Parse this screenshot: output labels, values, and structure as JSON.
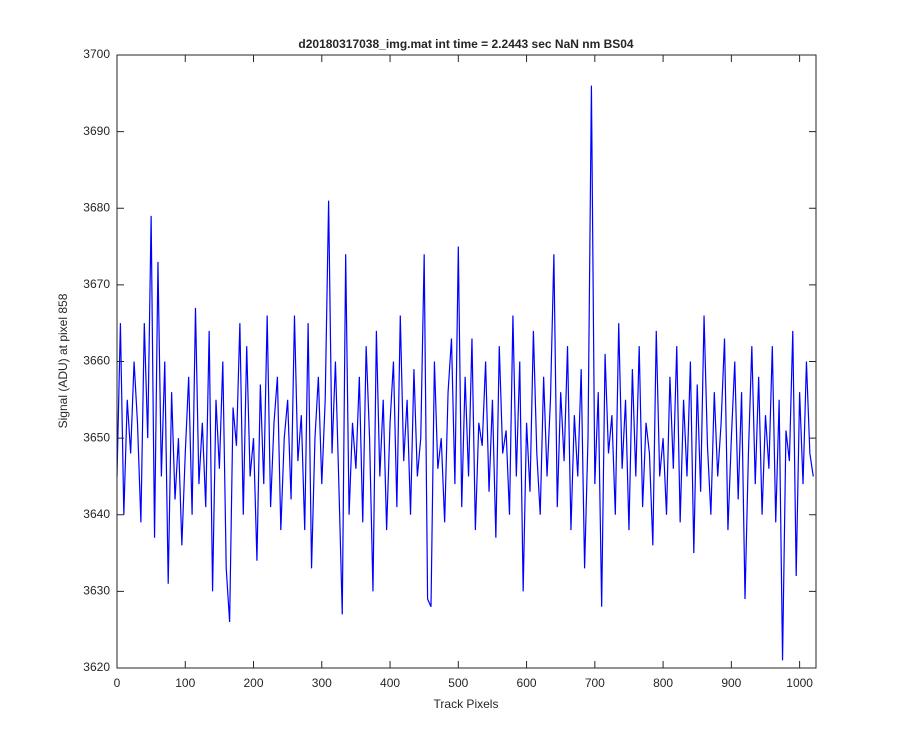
{
  "chart_data": {
    "type": "line",
    "title": "d20180317038_img.mat int time = 2.2443 sec  NaN nm BS04",
    "xlabel": "Track Pixels",
    "ylabel": "Signal (ADU) at pixel 858",
    "color": "#0000ff",
    "xlim": [
      0,
      1024
    ],
    "ylim": [
      3620,
      3700
    ],
    "xticks": [
      0,
      100,
      200,
      300,
      400,
      500,
      600,
      700,
      800,
      900,
      1000
    ],
    "yticks": [
      3620,
      3630,
      3640,
      3650,
      3660,
      3670,
      3680,
      3690,
      3700
    ],
    "x": [
      0,
      5,
      10,
      15,
      20,
      25,
      30,
      35,
      40,
      45,
      50,
      55,
      60,
      65,
      70,
      75,
      80,
      85,
      90,
      95,
      100,
      105,
      110,
      115,
      120,
      125,
      130,
      135,
      140,
      145,
      150,
      155,
      160,
      165,
      170,
      175,
      180,
      185,
      190,
      195,
      200,
      205,
      210,
      215,
      220,
      225,
      230,
      235,
      240,
      245,
      250,
      255,
      260,
      265,
      270,
      275,
      280,
      285,
      290,
      295,
      300,
      305,
      310,
      315,
      320,
      325,
      330,
      335,
      340,
      345,
      350,
      355,
      360,
      365,
      370,
      375,
      380,
      385,
      390,
      395,
      400,
      405,
      410,
      415,
      420,
      425,
      430,
      435,
      440,
      445,
      450,
      455,
      460,
      465,
      470,
      475,
      480,
      485,
      490,
      495,
      500,
      505,
      510,
      515,
      520,
      525,
      530,
      535,
      540,
      545,
      550,
      555,
      560,
      565,
      570,
      575,
      580,
      585,
      590,
      595,
      600,
      605,
      610,
      615,
      620,
      625,
      630,
      635,
      640,
      645,
      650,
      655,
      660,
      665,
      670,
      675,
      680,
      685,
      690,
      695,
      700,
      705,
      710,
      715,
      720,
      725,
      730,
      735,
      740,
      745,
      750,
      755,
      760,
      765,
      770,
      775,
      780,
      785,
      790,
      795,
      800,
      805,
      810,
      815,
      820,
      825,
      830,
      835,
      840,
      845,
      850,
      855,
      860,
      865,
      870,
      875,
      880,
      885,
      890,
      895,
      900,
      905,
      910,
      915,
      920,
      925,
      930,
      935,
      940,
      945,
      950,
      955,
      960,
      965,
      970,
      975,
      980,
      985,
      990,
      995,
      1000,
      1005,
      1010,
      1015,
      1020
    ],
    "values": [
      3645,
      3665,
      3640,
      3655,
      3648,
      3660,
      3652,
      3639,
      3665,
      3650,
      3679,
      3637,
      3673,
      3645,
      3660,
      3631,
      3656,
      3642,
      3650,
      3636,
      3648,
      3658,
      3640,
      3667,
      3644,
      3652,
      3641,
      3664,
      3630,
      3655,
      3646,
      3660,
      3633,
      3626,
      3654,
      3649,
      3665,
      3640,
      3662,
      3645,
      3650,
      3634,
      3657,
      3644,
      3666,
      3641,
      3652,
      3658,
      3638,
      3650,
      3655,
      3642,
      3666,
      3647,
      3653,
      3638,
      3665,
      3633,
      3650,
      3658,
      3644,
      3655,
      3681,
      3648,
      3660,
      3644,
      3627,
      3674,
      3640,
      3652,
      3646,
      3658,
      3639,
      3662,
      3650,
      3630,
      3664,
      3645,
      3655,
      3638,
      3652,
      3660,
      3641,
      3666,
      3647,
      3655,
      3640,
      3659,
      3645,
      3650,
      3674,
      3629,
      3628,
      3660,
      3646,
      3650,
      3639,
      3656,
      3663,
      3644,
      3675,
      3641,
      3658,
      3645,
      3663,
      3638,
      3652,
      3649,
      3660,
      3643,
      3655,
      3637,
      3662,
      3648,
      3651,
      3640,
      3666,
      3645,
      3660,
      3630,
      3652,
      3643,
      3664,
      3648,
      3640,
      3658,
      3645,
      3655,
      3674,
      3641,
      3656,
      3647,
      3662,
      3638,
      3653,
      3645,
      3659,
      3633,
      3650,
      3696,
      3644,
      3656,
      3628,
      3661,
      3648,
      3653,
      3640,
      3665,
      3646,
      3655,
      3638,
      3659,
      3645,
      3662,
      3641,
      3652,
      3648,
      3636,
      3664,
      3645,
      3650,
      3640,
      3658,
      3646,
      3662,
      3639,
      3655,
      3645,
      3660,
      3635,
      3657,
      3643,
      3666,
      3649,
      3640,
      3656,
      3645,
      3652,
      3663,
      3638,
      3650,
      3660,
      3642,
      3656,
      3629,
      3648,
      3662,
      3644,
      3658,
      3640,
      3653,
      3646,
      3662,
      3639,
      3655,
      3621,
      3651,
      3647,
      3664,
      3632,
      3656,
      3644,
      3660,
      3648,
      3645
    ]
  }
}
